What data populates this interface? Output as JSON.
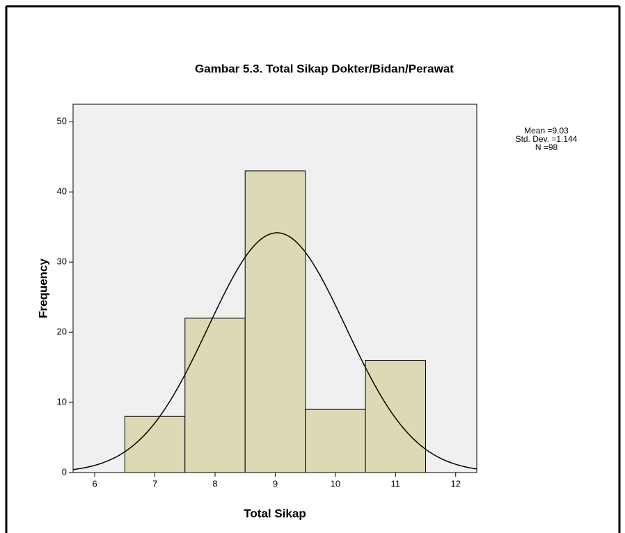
{
  "chart_data": {
    "type": "histogram",
    "title": "Gambar 5.3. Total Sikap Dokter/Bidan/Perawat",
    "x_label": "Total Sikap",
    "y_label": "Frequency",
    "bins": [
      6.5,
      7.5,
      8.5,
      9.5,
      10.5,
      11.5
    ],
    "values": [
      8,
      22,
      43,
      9,
      16
    ],
    "color": "#d9d5aa",
    "plot_background": "#f0f0f0",
    "xlim": [
      5.64,
      12.35
    ],
    "xticks": [
      6,
      7,
      8,
      9,
      10,
      11,
      12
    ],
    "ylim": [
      0,
      52.5
    ],
    "yticks": [
      0,
      10,
      20,
      30,
      40,
      50
    ],
    "statistics": {
      "mean": {
        "value": 9.03,
        "label": "Mean =9.03"
      },
      "std_dev": {
        "value": 1.144,
        "label": "Std. Dev. =1.144"
      },
      "n": {
        "value": 98,
        "label": "N =98"
      }
    }
  }
}
